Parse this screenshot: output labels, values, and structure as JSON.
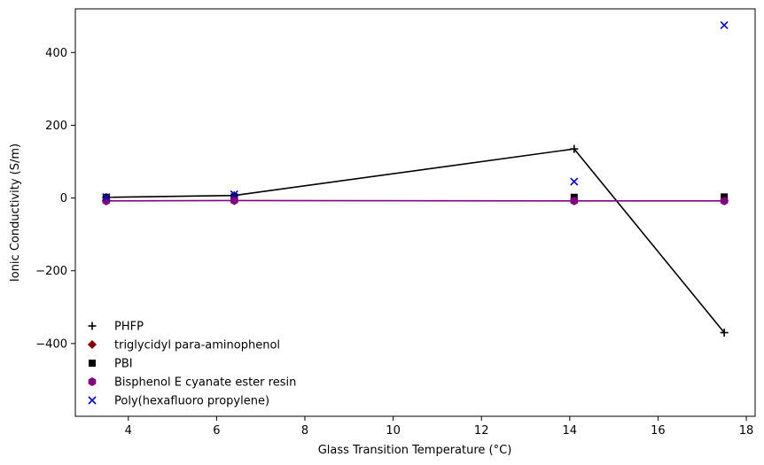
{
  "chart_data": {
    "type": "scatter",
    "title": "",
    "xlabel": "Glass Transition Temperature (°C)",
    "ylabel": "Ionic Conductivity (S/m)",
    "xlim": [
      2.8,
      18.2
    ],
    "ylim": [
      -600,
      520
    ],
    "x_ticks": [
      4,
      6,
      8,
      10,
      12,
      14,
      16,
      18
    ],
    "y_ticks": [
      -400,
      -200,
      0,
      200,
      400
    ],
    "grid": false,
    "legend_position": "lower-left",
    "series": [
      {
        "name": "PHFP",
        "marker": "plus",
        "color": "#000000",
        "line": true,
        "points": [
          [
            3.5,
            2
          ],
          [
            6.4,
            7
          ],
          [
            14.1,
            135
          ],
          [
            17.5,
            -370
          ]
        ]
      },
      {
        "name": "triglycidyl para-aminophenol",
        "marker": "diamond",
        "color": "#800000",
        "line": false,
        "points": [
          [
            3.5,
            -7
          ],
          [
            6.4,
            -7
          ],
          [
            14.1,
            -7
          ],
          [
            17.5,
            -7
          ]
        ]
      },
      {
        "name": "PBI",
        "marker": "square",
        "color": "#000000",
        "line": false,
        "points": [
          [
            3.5,
            2
          ],
          [
            6.4,
            3
          ],
          [
            14.1,
            2
          ],
          [
            17.5,
            3
          ]
        ]
      },
      {
        "name": "Bisphenol E cyanate ester resin",
        "marker": "hexagon",
        "color": "#800080",
        "line": true,
        "points": [
          [
            3.5,
            -8
          ],
          [
            6.4,
            -7
          ],
          [
            14.1,
            -8
          ],
          [
            17.5,
            -8
          ]
        ]
      },
      {
        "name": "Poly(hexafluoro propylene)",
        "marker": "x",
        "color": "#0000cc",
        "line": false,
        "points": [
          [
            3.5,
            2
          ],
          [
            6.4,
            10
          ],
          [
            14.1,
            45
          ],
          [
            17.5,
            475
          ]
        ]
      }
    ]
  }
}
